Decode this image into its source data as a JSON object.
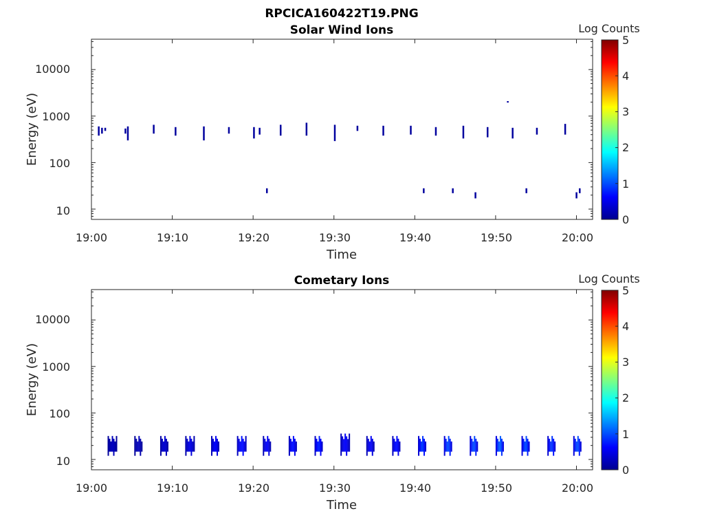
{
  "figure_title": "RPCICA160422T19.PNG",
  "chart_data": [
    {
      "type": "heatmap",
      "title": "Solar Wind Ions",
      "xlabel": "Time",
      "ylabel": "Energy (eV)",
      "yscale": "log",
      "xlim": [
        "19:00",
        "20:02"
      ],
      "ylim": [
        6,
        45000
      ],
      "xticks": [
        "19:00",
        "19:10",
        "19:20",
        "19:30",
        "19:40",
        "19:50",
        "20:00"
      ],
      "yticks": [
        "10",
        "100",
        "1000",
        "10000"
      ],
      "colorbar": {
        "label": "Log Counts",
        "range": [
          0,
          5
        ],
        "ticks": [
          "0",
          "1",
          "2",
          "3",
          "4",
          "5"
        ],
        "colormap": "jet"
      },
      "grid": false,
      "cells_columns": [
        "time_min",
        "energy_ev_low",
        "energy_ev_high",
        "log_counts"
      ],
      "cells": [
        [
          0.8,
          380,
          600,
          0.15
        ],
        [
          1.2,
          420,
          560,
          0.15
        ],
        [
          1.6,
          480,
          560,
          0.15
        ],
        [
          4.1,
          420,
          540,
          0.15
        ],
        [
          4.4,
          300,
          600,
          0.15
        ],
        [
          7.6,
          420,
          650,
          0.15
        ],
        [
          10.3,
          380,
          580,
          0.15
        ],
        [
          13.8,
          300,
          600,
          0.15
        ],
        [
          16.9,
          420,
          580,
          0.15
        ],
        [
          20.0,
          330,
          580,
          0.15
        ],
        [
          20.7,
          400,
          560,
          0.15
        ],
        [
          21.6,
          22,
          28,
          0.15
        ],
        [
          23.3,
          380,
          650,
          0.15
        ],
        [
          26.5,
          380,
          720,
          0.15
        ],
        [
          30.0,
          290,
          650,
          0.15
        ],
        [
          32.8,
          480,
          620,
          0.15
        ],
        [
          36.0,
          380,
          620,
          0.15
        ],
        [
          39.4,
          400,
          620,
          0.15
        ],
        [
          41.0,
          22,
          28,
          0.15
        ],
        [
          42.5,
          380,
          580,
          0.15
        ],
        [
          44.6,
          22,
          28,
          0.15
        ],
        [
          45.9,
          330,
          620,
          0.15
        ],
        [
          47.4,
          17,
          23,
          0.15
        ],
        [
          48.9,
          350,
          580,
          0.15
        ],
        [
          51.4,
          1950,
          2100,
          0.15
        ],
        [
          52.0,
          330,
          560,
          0.15
        ],
        [
          53.7,
          22,
          28,
          0.15
        ],
        [
          55.0,
          400,
          560,
          0.15
        ],
        [
          58.5,
          400,
          680,
          0.15
        ],
        [
          59.9,
          17,
          23,
          0.15
        ],
        [
          60.3,
          22,
          28,
          0.15
        ]
      ]
    },
    {
      "type": "heatmap",
      "title": "Cometary Ions",
      "xlabel": "Time",
      "ylabel": "Energy (eV)",
      "yscale": "log",
      "xlim": [
        "19:00",
        "20:02"
      ],
      "ylim": [
        6,
        45000
      ],
      "xticks": [
        "19:00",
        "19:10",
        "19:20",
        "19:30",
        "19:40",
        "19:50",
        "20:00"
      ],
      "yticks": [
        "10",
        "100",
        "1000",
        "10000"
      ],
      "colorbar": {
        "label": "Log Counts",
        "range": [
          0,
          5
        ],
        "ticks": [
          "0",
          "1",
          "2",
          "3",
          "4",
          "5"
        ],
        "colormap": "jet"
      },
      "grid": false,
      "bursts_columns": [
        "start_min",
        "end_min",
        "energy_ev_low",
        "energy_ev_high",
        "max_log_counts"
      ],
      "bursts": [
        [
          2.0,
          3.2,
          12,
          32,
          0.3
        ],
        [
          5.3,
          6.3,
          12,
          32,
          0.3
        ],
        [
          8.5,
          9.6,
          12,
          32,
          0.4
        ],
        [
          11.6,
          12.8,
          12,
          32,
          0.5
        ],
        [
          14.8,
          15.8,
          12,
          32,
          0.6
        ],
        [
          18.0,
          19.2,
          12,
          32,
          0.7
        ],
        [
          21.2,
          22.3,
          12,
          32,
          0.6
        ],
        [
          24.4,
          25.4,
          12,
          32,
          0.7
        ],
        [
          27.6,
          28.6,
          12,
          32,
          0.8
        ],
        [
          30.8,
          32.0,
          12,
          36,
          0.6
        ],
        [
          34.0,
          35.0,
          12,
          32,
          0.6
        ],
        [
          37.2,
          38.2,
          12,
          32,
          0.7
        ],
        [
          40.4,
          41.4,
          12,
          32,
          0.9
        ],
        [
          43.6,
          44.6,
          12,
          32,
          1.0
        ],
        [
          46.8,
          47.8,
          12,
          32,
          1.0
        ],
        [
          50.0,
          51.0,
          12,
          32,
          1.1
        ],
        [
          53.2,
          54.2,
          12,
          32,
          1.0
        ],
        [
          56.4,
          57.4,
          12,
          32,
          0.9
        ],
        [
          59.6,
          60.6,
          12,
          32,
          1.0
        ]
      ]
    }
  ]
}
